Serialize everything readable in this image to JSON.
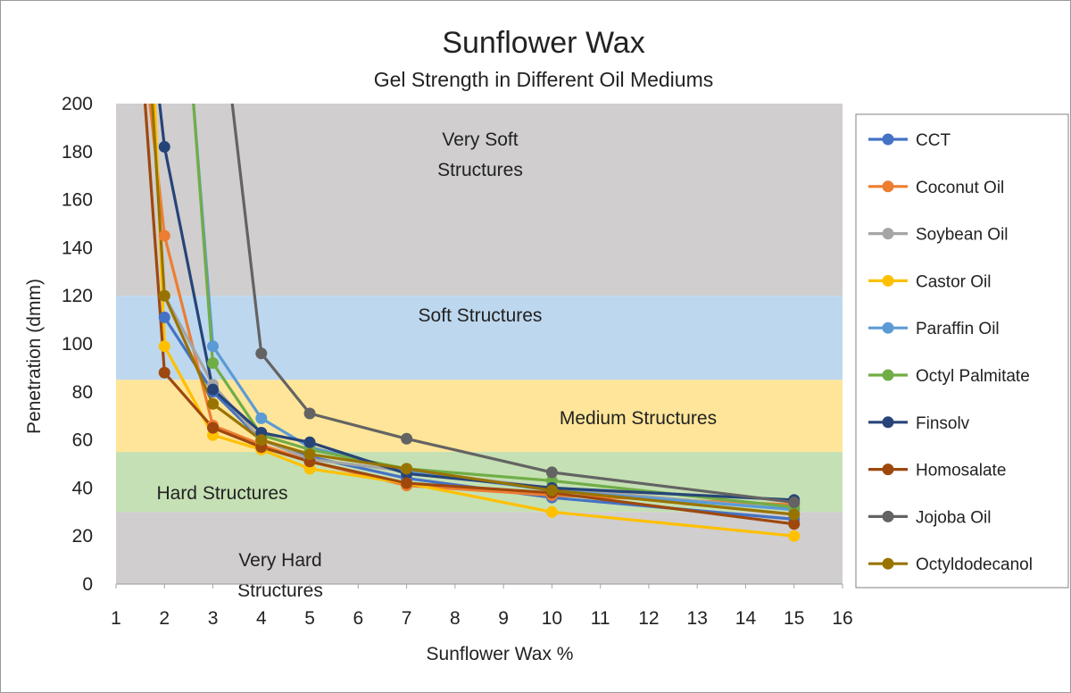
{
  "chart_data": {
    "type": "line",
    "title": "Sunflower Wax",
    "subtitle": "Gel Strength in Different Oil Mediums",
    "xlabel": "Sunflower Wax %",
    "ylabel": "Penetration (dmm)",
    "xlim": [
      1,
      16
    ],
    "ylim": [
      0,
      200
    ],
    "x_ticks": [
      1,
      2,
      3,
      4,
      5,
      6,
      7,
      8,
      9,
      10,
      11,
      12,
      13,
      14,
      15,
      16
    ],
    "y_ticks": [
      0,
      20,
      40,
      60,
      80,
      100,
      120,
      140,
      160,
      180,
      200
    ],
    "grid": false,
    "legend_position": "right",
    "zones": [
      {
        "label_lines": [
          "Very Soft",
          "Structures"
        ],
        "y_from": 120,
        "y_to": 200,
        "color": "#d0cece"
      },
      {
        "label_lines": [
          "Soft Structures"
        ],
        "y_from": 85,
        "y_to": 120,
        "color": "#bdd7ee"
      },
      {
        "label_lines": [
          "Medium Structures"
        ],
        "y_from": 55,
        "y_to": 85,
        "color": "#fee599"
      },
      {
        "label_lines": [
          "Hard Structures"
        ],
        "y_from": 30,
        "y_to": 55,
        "color": "#c5e0b4"
      },
      {
        "label_lines": [
          "Very Hard",
          "Structures"
        ],
        "y_from": 0,
        "y_to": 30,
        "color": "#d0cece"
      }
    ],
    "series": [
      {
        "name": "CCT",
        "color": "#4472c4",
        "points": [
          [
            2,
            111
          ],
          [
            3,
            80
          ],
          [
            4,
            60
          ],
          [
            5,
            53
          ],
          [
            7,
            44
          ],
          [
            10,
            36
          ],
          [
            15,
            27
          ]
        ]
      },
      {
        "name": "Coconut Oil",
        "color": "#ed7d31",
        "points": [
          [
            1.7,
            200
          ],
          [
            2,
            145
          ],
          [
            3,
            66
          ],
          [
            4,
            58
          ],
          [
            5,
            51
          ],
          [
            7,
            41
          ],
          [
            10,
            37
          ],
          [
            15,
            33
          ]
        ]
      },
      {
        "name": "Soybean Oil",
        "color": "#a5a5a5",
        "points": [
          [
            2,
            120
          ],
          [
            3,
            83
          ],
          [
            4,
            60
          ],
          [
            5,
            52
          ],
          [
            7,
            47
          ],
          [
            10,
            40
          ],
          [
            15,
            31
          ]
        ]
      },
      {
        "name": "Castor Oil",
        "color": "#ffc000",
        "points": [
          [
            1.8,
            200
          ],
          [
            2,
            99
          ],
          [
            3,
            62
          ],
          [
            4,
            56
          ],
          [
            5,
            48
          ],
          [
            7,
            42
          ],
          [
            10,
            30
          ],
          [
            15,
            20
          ]
        ]
      },
      {
        "name": "Paraffin Oil",
        "color": "#5b9bd5",
        "points": [
          [
            2.6,
            200
          ],
          [
            3,
            99
          ],
          [
            4,
            69
          ],
          [
            5,
            57
          ],
          [
            7,
            47
          ],
          [
            10,
            39
          ],
          [
            15,
            31
          ]
        ]
      },
      {
        "name": "Octyl Palmitate",
        "color": "#70ad47",
        "points": [
          [
            2.6,
            200
          ],
          [
            3,
            92
          ],
          [
            4,
            62
          ],
          [
            5,
            56
          ],
          [
            7,
            48
          ],
          [
            10,
            43
          ],
          [
            15,
            32
          ]
        ]
      },
      {
        "name": "Finsolv",
        "color": "#264478",
        "points": [
          [
            1.9,
            200
          ],
          [
            2,
            182
          ],
          [
            3,
            81
          ],
          [
            4,
            63
          ],
          [
            5,
            59
          ],
          [
            7,
            46
          ],
          [
            10,
            40
          ],
          [
            15,
            35
          ]
        ]
      },
      {
        "name": "Homosalate",
        "color": "#9e480e",
        "points": [
          [
            1.6,
            200
          ],
          [
            2,
            88
          ],
          [
            3,
            65
          ],
          [
            4,
            57
          ],
          [
            5,
            51
          ],
          [
            7,
            42
          ],
          [
            10,
            38
          ],
          [
            15,
            25
          ]
        ]
      },
      {
        "name": "Jojoba Oil",
        "color": "#636363",
        "points": [
          [
            3.4,
            200
          ],
          [
            4,
            96
          ],
          [
            5,
            71
          ],
          [
            7,
            60.5
          ],
          [
            10,
            46.5
          ],
          [
            15,
            34
          ]
        ]
      },
      {
        "name": "Octyldodecanol",
        "color": "#997300",
        "points": [
          [
            1.75,
            200
          ],
          [
            2,
            120
          ],
          [
            3,
            75
          ],
          [
            4,
            60
          ],
          [
            5,
            54
          ],
          [
            7,
            48
          ],
          [
            10,
            39
          ],
          [
            15,
            29
          ]
        ]
      }
    ]
  }
}
